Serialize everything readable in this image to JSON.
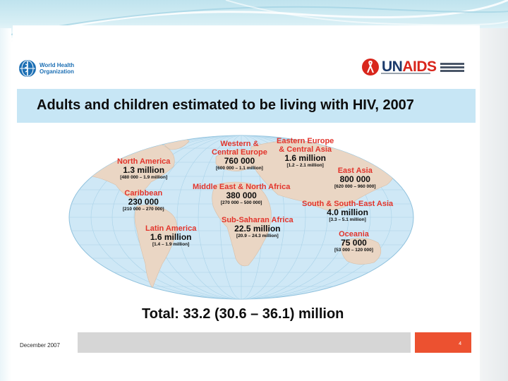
{
  "header": {
    "who_logo_text": "World Health Organization",
    "unaids_logo_text": "UNAIDS",
    "title": "Adults and children estimated to be living with HIV, 2007"
  },
  "regions": [
    {
      "name_line1": "North America",
      "value": "1.3 million",
      "range": "[480 000 – 1.9 million]"
    },
    {
      "name_line1": "Western &",
      "name_line2": "Central Europe",
      "value": "760 000",
      "range": "[600 000 – 1.1 million]"
    },
    {
      "name_line1": "Eastern Europe",
      "name_line2": "& Central Asia",
      "value": "1.6 million",
      "range": "[1.2 – 2.1 million]"
    },
    {
      "name_line1": "East Asia",
      "value": "800 000",
      "range": "[620 000 – 960 000]"
    },
    {
      "name_line1": "Caribbean",
      "value": "230 000",
      "range": "[210 000 – 270 000]"
    },
    {
      "name_line1": "Middle East & North Africa",
      "value": "380 000",
      "range": "[270 000 – 500 000]"
    },
    {
      "name_line1": "South & South-East Asia",
      "value": "4.0 million",
      "range": "[3.3 – 5.1 million]"
    },
    {
      "name_line1": "Latin America",
      "value": "1.6 million",
      "range": "[1.4 – 1.9 million]"
    },
    {
      "name_line1": "Sub-Saharan Africa",
      "value": "22.5 million",
      "range": "[20.9 – 24.3 million]"
    },
    {
      "name_line1": "Oceania",
      "value": "75 000",
      "range": "[53 000 – 120 000]"
    }
  ],
  "total": "Total: 33.2 (30.6 – 36.1) million",
  "footer": {
    "date": "December 2007",
    "page": "4"
  },
  "colors": {
    "region_name": "#e2342b",
    "title_band": "#c7e6f5",
    "ocean": "#cfe8f6",
    "land": "#ead6c4",
    "footer_accent": "#ec5130"
  }
}
